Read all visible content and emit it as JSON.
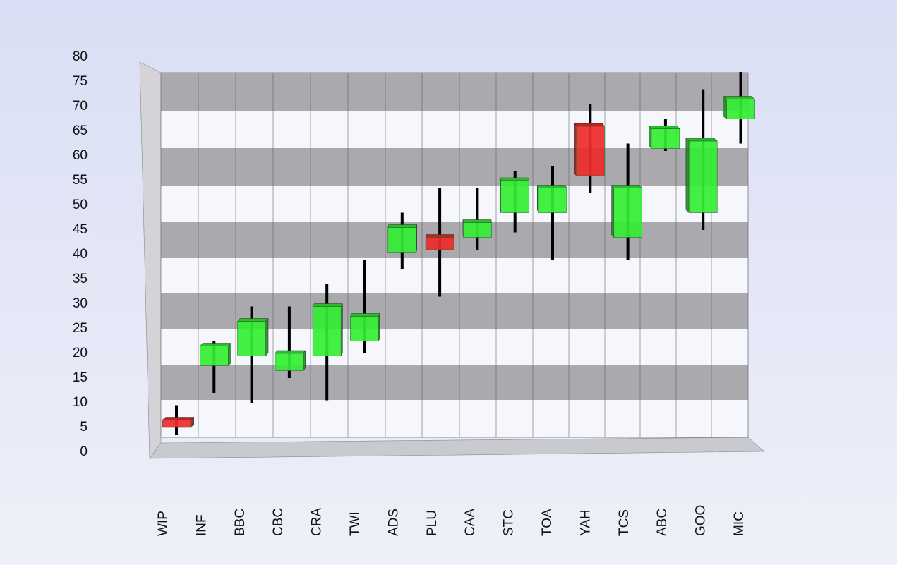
{
  "chart_data": {
    "type": "candlestick",
    "categories": [
      "WIP",
      "INF",
      "BBC",
      "CBC",
      "CRA",
      "TWI",
      "ADS",
      "PLU",
      "CAA",
      "STC",
      "TOA",
      "YAH",
      "TCS",
      "ABC",
      "GOO",
      "MIC"
    ],
    "open": [
      6.5,
      17.5,
      19.5,
      16.5,
      19.5,
      22.5,
      40.5,
      43.5,
      43.5,
      48.5,
      48.5,
      66,
      43.5,
      61.5,
      48.5,
      67.5
    ],
    "high": [
      9.5,
      22.5,
      29.5,
      29.5,
      34,
      39,
      48.5,
      53.5,
      53.5,
      57,
      58,
      70.5,
      62.5,
      67.5,
      73.5,
      77
    ],
    "low": [
      3.5,
      12,
      10,
      15,
      10.5,
      20,
      37,
      31.5,
      41,
      44.5,
      39,
      52.5,
      39,
      61,
      45,
      62.5
    ],
    "close": [
      5,
      21.5,
      26.5,
      20,
      29.5,
      27.5,
      45.5,
      41,
      46.5,
      55,
      53.5,
      56,
      53.5,
      65.5,
      63,
      71.5
    ],
    "up_color": "#33ee33",
    "down_color": "#ee2a2a",
    "ylim": [
      0,
      80
    ],
    "yticks": [
      0,
      5,
      10,
      15,
      20,
      25,
      30,
      35,
      40,
      45,
      50,
      55,
      60,
      65,
      70,
      75,
      80
    ]
  }
}
